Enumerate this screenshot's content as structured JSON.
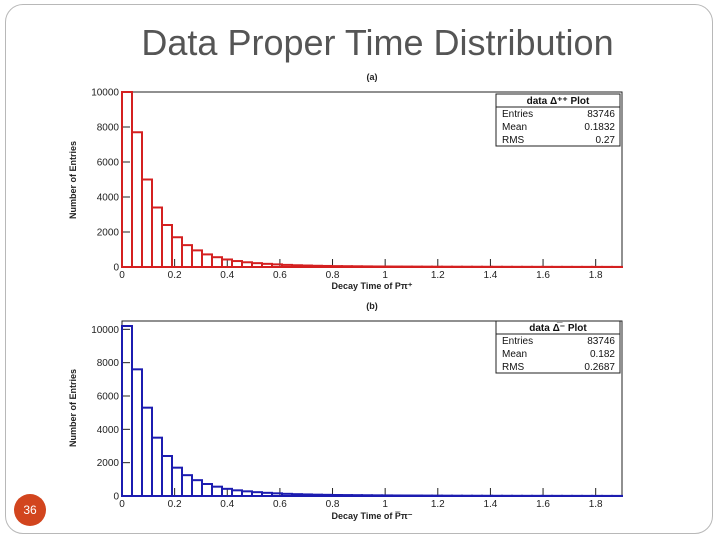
{
  "slide": {
    "title": "Data Proper Time Distribution",
    "number": "36"
  },
  "chart_data": [
    {
      "type": "bar",
      "panel_label": "(a)",
      "title": "",
      "xlabel": "Decay Time of Pπ⁺",
      "ylabel": "Number of Entries",
      "xlim": [
        0,
        1.9
      ],
      "ylim": [
        0,
        10000
      ],
      "xticks": [
        "0",
        "0.2",
        "0.4",
        "0.6",
        "0.8",
        "1",
        "1.2",
        "1.4",
        "1.6",
        "1.8"
      ],
      "yticks": [
        "0",
        "2000",
        "4000",
        "6000",
        "8000",
        "10000"
      ],
      "color": "#d42020",
      "bin_width": 0.038,
      "x": [
        0.0,
        0.038,
        0.076,
        0.114,
        0.152,
        0.19,
        0.228,
        0.266,
        0.304,
        0.342,
        0.38,
        0.418,
        0.456,
        0.494,
        0.532,
        0.57,
        0.608,
        0.646,
        0.684,
        0.722,
        0.76,
        0.798,
        0.836,
        0.874,
        0.912,
        0.95,
        0.988,
        1.026,
        1.064,
        1.102,
        1.14,
        1.178,
        1.216,
        1.254,
        1.292,
        1.33,
        1.368,
        1.406,
        1.444,
        1.482,
        1.52,
        1.558,
        1.596,
        1.634,
        1.672,
        1.71,
        1.748,
        1.786,
        1.824,
        1.862
      ],
      "values": [
        10000,
        7700,
        5000,
        3400,
        2400,
        1700,
        1250,
        950,
        720,
        560,
        430,
        340,
        270,
        220,
        180,
        150,
        120,
        100,
        85,
        70,
        60,
        50,
        45,
        40,
        35,
        30,
        28,
        26,
        24,
        22,
        20,
        18,
        17,
        16,
        15,
        14,
        13,
        12,
        11,
        10,
        10,
        9,
        9,
        8,
        8,
        7,
        7,
        6,
        6,
        5
      ],
      "stats_box": {
        "title": "data Δ⁺⁺ Plot",
        "rows": [
          {
            "label": "Entries",
            "value": "83746"
          },
          {
            "label": "Mean",
            "value": "0.1832"
          },
          {
            "label": "RMS",
            "value": "0.27"
          }
        ]
      },
      "legend": "top-right",
      "grid": false
    },
    {
      "type": "bar",
      "panel_label": "(b)",
      "title": "",
      "xlabel": "Decay Time of P̅π⁻",
      "ylabel": "Number of Entries",
      "xlim": [
        0,
        1.9
      ],
      "ylim": [
        0,
        10500
      ],
      "xticks": [
        "0",
        "0.2",
        "0.4",
        "0.6",
        "0.8",
        "1",
        "1.2",
        "1.4",
        "1.6",
        "1.8"
      ],
      "yticks": [
        "0",
        "2000",
        "4000",
        "6000",
        "8000",
        "10000"
      ],
      "color": "#1c1cb0",
      "bin_width": 0.038,
      "x": [
        0.0,
        0.038,
        0.076,
        0.114,
        0.152,
        0.19,
        0.228,
        0.266,
        0.304,
        0.342,
        0.38,
        0.418,
        0.456,
        0.494,
        0.532,
        0.57,
        0.608,
        0.646,
        0.684,
        0.722,
        0.76,
        0.798,
        0.836,
        0.874,
        0.912,
        0.95,
        0.988,
        1.026,
        1.064,
        1.102,
        1.14,
        1.178,
        1.216,
        1.254,
        1.292,
        1.33,
        1.368,
        1.406,
        1.444,
        1.482,
        1.52,
        1.558,
        1.596,
        1.634,
        1.672,
        1.71,
        1.748,
        1.786,
        1.824,
        1.862
      ],
      "values": [
        10200,
        7600,
        5300,
        3500,
        2400,
        1700,
        1250,
        950,
        720,
        560,
        430,
        340,
        280,
        230,
        190,
        160,
        130,
        110,
        95,
        80,
        70,
        60,
        55,
        50,
        45,
        40,
        36,
        32,
        30,
        28,
        25,
        23,
        20,
        18,
        16,
        15,
        14,
        13,
        12,
        11,
        10,
        10,
        9,
        9,
        8,
        8,
        7,
        7,
        6,
        6
      ],
      "stats_box": {
        "title": "data Δ̅⁻ Plot",
        "rows": [
          {
            "label": "Entries",
            "value": "83746"
          },
          {
            "label": "Mean",
            "value": "0.182"
          },
          {
            "label": "RMS",
            "value": "0.2687"
          }
        ]
      },
      "legend": "top-right",
      "grid": false
    }
  ]
}
